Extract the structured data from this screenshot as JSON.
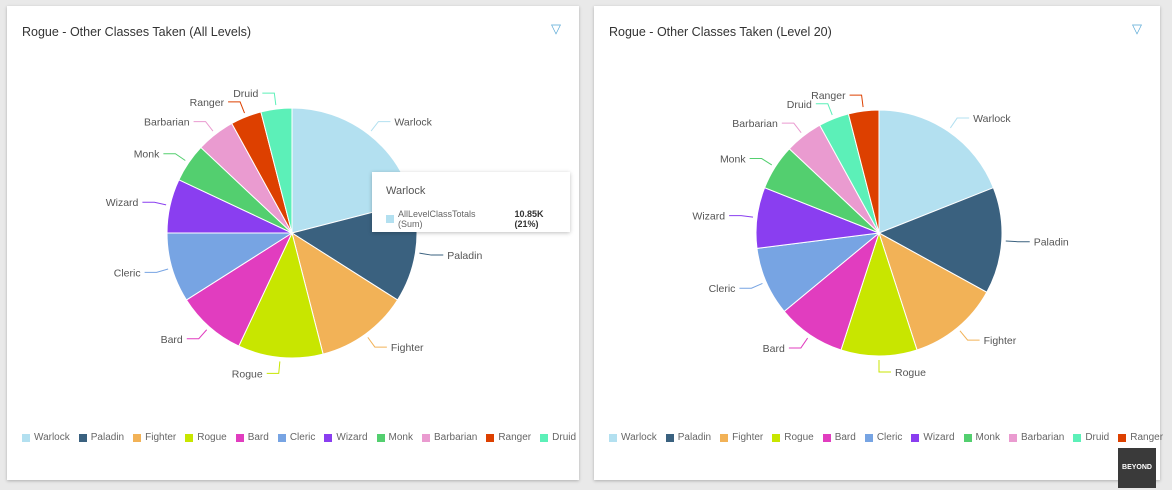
{
  "colors": {
    "Warlock": "#b3e0f0",
    "Paladin": "#3a617f",
    "Fighter": "#f2b257",
    "Rogue": "#c8e600",
    "Bard": "#e13dbf",
    "Cleric": "#77a4e3",
    "Wizard": "#8a3ef0",
    "Monk": "#53cf6f",
    "Barbarian": "#ea9bd0",
    "Ranger": "#dd4000",
    "Druid": "#5cf0b8"
  },
  "filter_icon": "funnel-icon",
  "chart_data": [
    {
      "type": "pie",
      "title": "Rogue - Other Classes Taken (All Levels)",
      "legend_position": "bottom-left",
      "categories": [
        "Warlock",
        "Paladin",
        "Fighter",
        "Rogue",
        "Bard",
        "Cleric",
        "Wizard",
        "Monk",
        "Barbarian",
        "Ranger",
        "Druid"
      ],
      "values": [
        21,
        13,
        12,
        11,
        9,
        9,
        7,
        5,
        5,
        4,
        4
      ],
      "legend": [
        "Warlock",
        "Paladin",
        "Fighter",
        "Rogue",
        "Bard",
        "Cleric",
        "Wizard",
        "Monk",
        "Barbarian",
        "Ranger",
        "Druid"
      ],
      "tooltip": {
        "title": "Warlock",
        "measure": "AllLevelClassTotals (Sum)",
        "value": "10.85K (21%)"
      }
    },
    {
      "type": "pie",
      "title": "Rogue - Other Classes Taken (Level 20)",
      "legend_position": "bottom-left",
      "categories": [
        "Warlock",
        "Paladin",
        "Fighter",
        "Rogue",
        "Bard",
        "Cleric",
        "Wizard",
        "Monk",
        "Barbarian",
        "Druid",
        "Ranger"
      ],
      "values": [
        19,
        14,
        12,
        10,
        9,
        9,
        8,
        6,
        5,
        4,
        4
      ],
      "legend": [
        "Warlock",
        "Paladin",
        "Fighter",
        "Rogue",
        "Bard",
        "Cleric",
        "Wizard",
        "Monk",
        "Barbarian",
        "Druid",
        "Ranger"
      ]
    }
  ],
  "logo": "BEYOND"
}
